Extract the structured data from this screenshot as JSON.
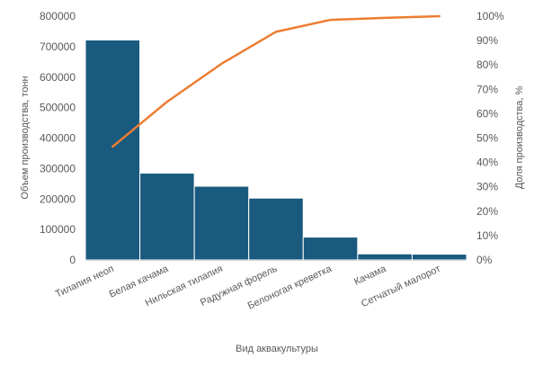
{
  "chart_data": {
    "type": "bar",
    "title": "",
    "categories": [
      "Тилапия неоп",
      "Белая качама",
      "Нильская тилапия",
      "Радужная форель",
      "Белоногая креветка",
      "Качама",
      "Сетчатый малорот"
    ],
    "series": [
      {
        "type": "bar",
        "values": [
          722000,
          285000,
          242000,
          203000,
          75000,
          20000,
          19000
        ],
        "color": "#1a5a7e"
      },
      {
        "type": "line",
        "axis": "right",
        "values": [
          46.5,
          64.9,
          80.5,
          93.6,
          98.5,
          99.3,
          100
        ],
        "color": "#ed7d31"
      }
    ],
    "xlabel": "Вид аквакультуры",
    "ylabel": "Объем производства, тонн",
    "ylabel_right": "Доля производства, %",
    "ylim": [
      0,
      800000
    ],
    "yticks": [
      "0",
      "100000",
      "200000",
      "300000",
      "400000",
      "500000",
      "600000",
      "700000",
      "800000"
    ],
    "ylim_right": [
      0,
      100
    ],
    "yticks_right": [
      "0%",
      "10%",
      "20%",
      "30%",
      "40%",
      "50%",
      "60%",
      "70%",
      "80%",
      "90%",
      "100%"
    ],
    "grid": false,
    "legend": "none"
  }
}
